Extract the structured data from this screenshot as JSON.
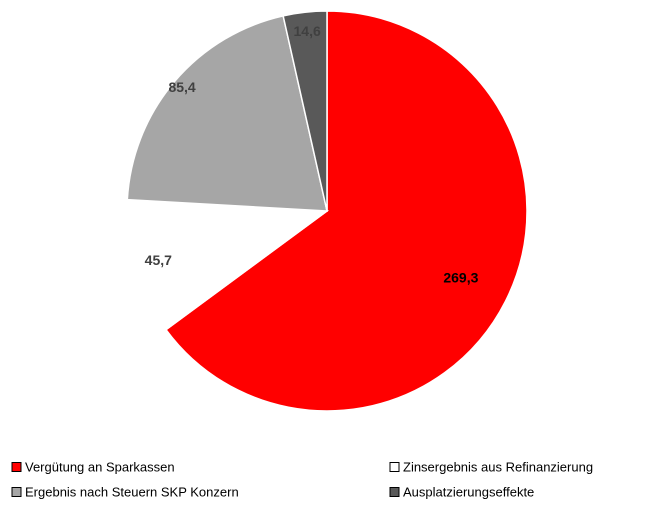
{
  "chart_data": {
    "type": "pie",
    "categories": [
      "Vergütung an Sparkassen",
      "Zinsergebnis aus Refinanzierung",
      "Ergebnis nach Steuern SKP Konzern",
      "Ausplatzierungseffekte"
    ],
    "values": [
      269.3,
      45.7,
      85.4,
      14.6
    ],
    "value_labels": [
      "269,3",
      "45,7",
      "85,4",
      "14,6"
    ],
    "colors": [
      "#ff0000",
      "#ffffff",
      "#a6a6a6",
      "#595959"
    ]
  }
}
